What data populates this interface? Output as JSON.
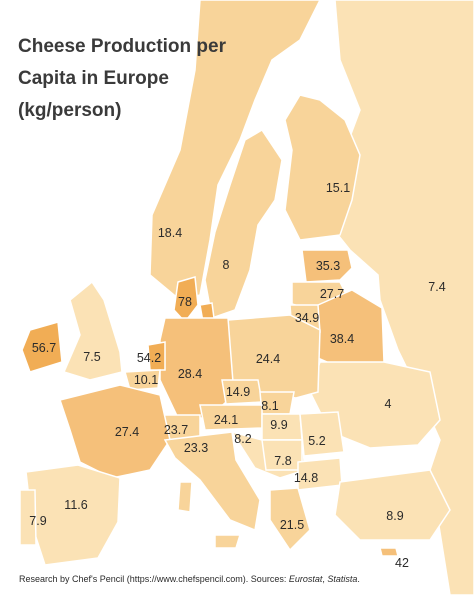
{
  "title_lines": [
    "Cheese Production per",
    "Capita in Europe",
    "(kg/person)"
  ],
  "colors": {
    "sea": "#ffffff",
    "no_data": "#e9e9e9",
    "light": "#fbe2b5",
    "mid": "#f8d49a",
    "strong": "#f5c07a",
    "dark": "#f1ad55",
    "border": "#ffffff"
  },
  "values": [
    {
      "id": "ireland",
      "value": "56.7"
    },
    {
      "id": "uk",
      "value": "7.5"
    },
    {
      "id": "netherlands",
      "value": "54.2"
    },
    {
      "id": "belgium",
      "value": "10.1"
    },
    {
      "id": "france",
      "value": "27.4"
    },
    {
      "id": "spain",
      "value": "11.6"
    },
    {
      "id": "portugal",
      "value": "7.9"
    },
    {
      "id": "norway",
      "value": "18.4"
    },
    {
      "id": "sweden",
      "value": "8"
    },
    {
      "id": "finland",
      "value": "15.1"
    },
    {
      "id": "denmark",
      "value": "78"
    },
    {
      "id": "latvia",
      "value": "35.3"
    },
    {
      "id": "lithuania",
      "value": "27.7"
    },
    {
      "id": "kaliningrad",
      "value": "34.9"
    },
    {
      "id": "belarus",
      "value": "38.4"
    },
    {
      "id": "russia",
      "value": "7.4"
    },
    {
      "id": "germany",
      "value": "28.4"
    },
    {
      "id": "poland",
      "value": "24.4"
    },
    {
      "id": "czechia",
      "value": "14.9"
    },
    {
      "id": "slovakia",
      "value": "8.1"
    },
    {
      "id": "austria",
      "value": "24.1"
    },
    {
      "id": "switzerland",
      "value": "23.7"
    },
    {
      "id": "hungary",
      "value": "9.9"
    },
    {
      "id": "ukraine",
      "value": "4"
    },
    {
      "id": "romania",
      "value": "5.2"
    },
    {
      "id": "croatia",
      "value": "8.2"
    },
    {
      "id": "italy",
      "value": "23.3"
    },
    {
      "id": "serbia",
      "value": "7.8"
    },
    {
      "id": "bulgaria",
      "value": "14.8"
    },
    {
      "id": "greece",
      "value": "21.5"
    },
    {
      "id": "turkey",
      "value": "8.9"
    },
    {
      "id": "cyprus",
      "value": "42"
    }
  ],
  "footer": {
    "text": "Research by Chef's Pencil (https://www.chefspencil.com). Sources: ",
    "source1": "Eurostat",
    "sep": ", ",
    "source2": "Statista",
    "end": "."
  }
}
